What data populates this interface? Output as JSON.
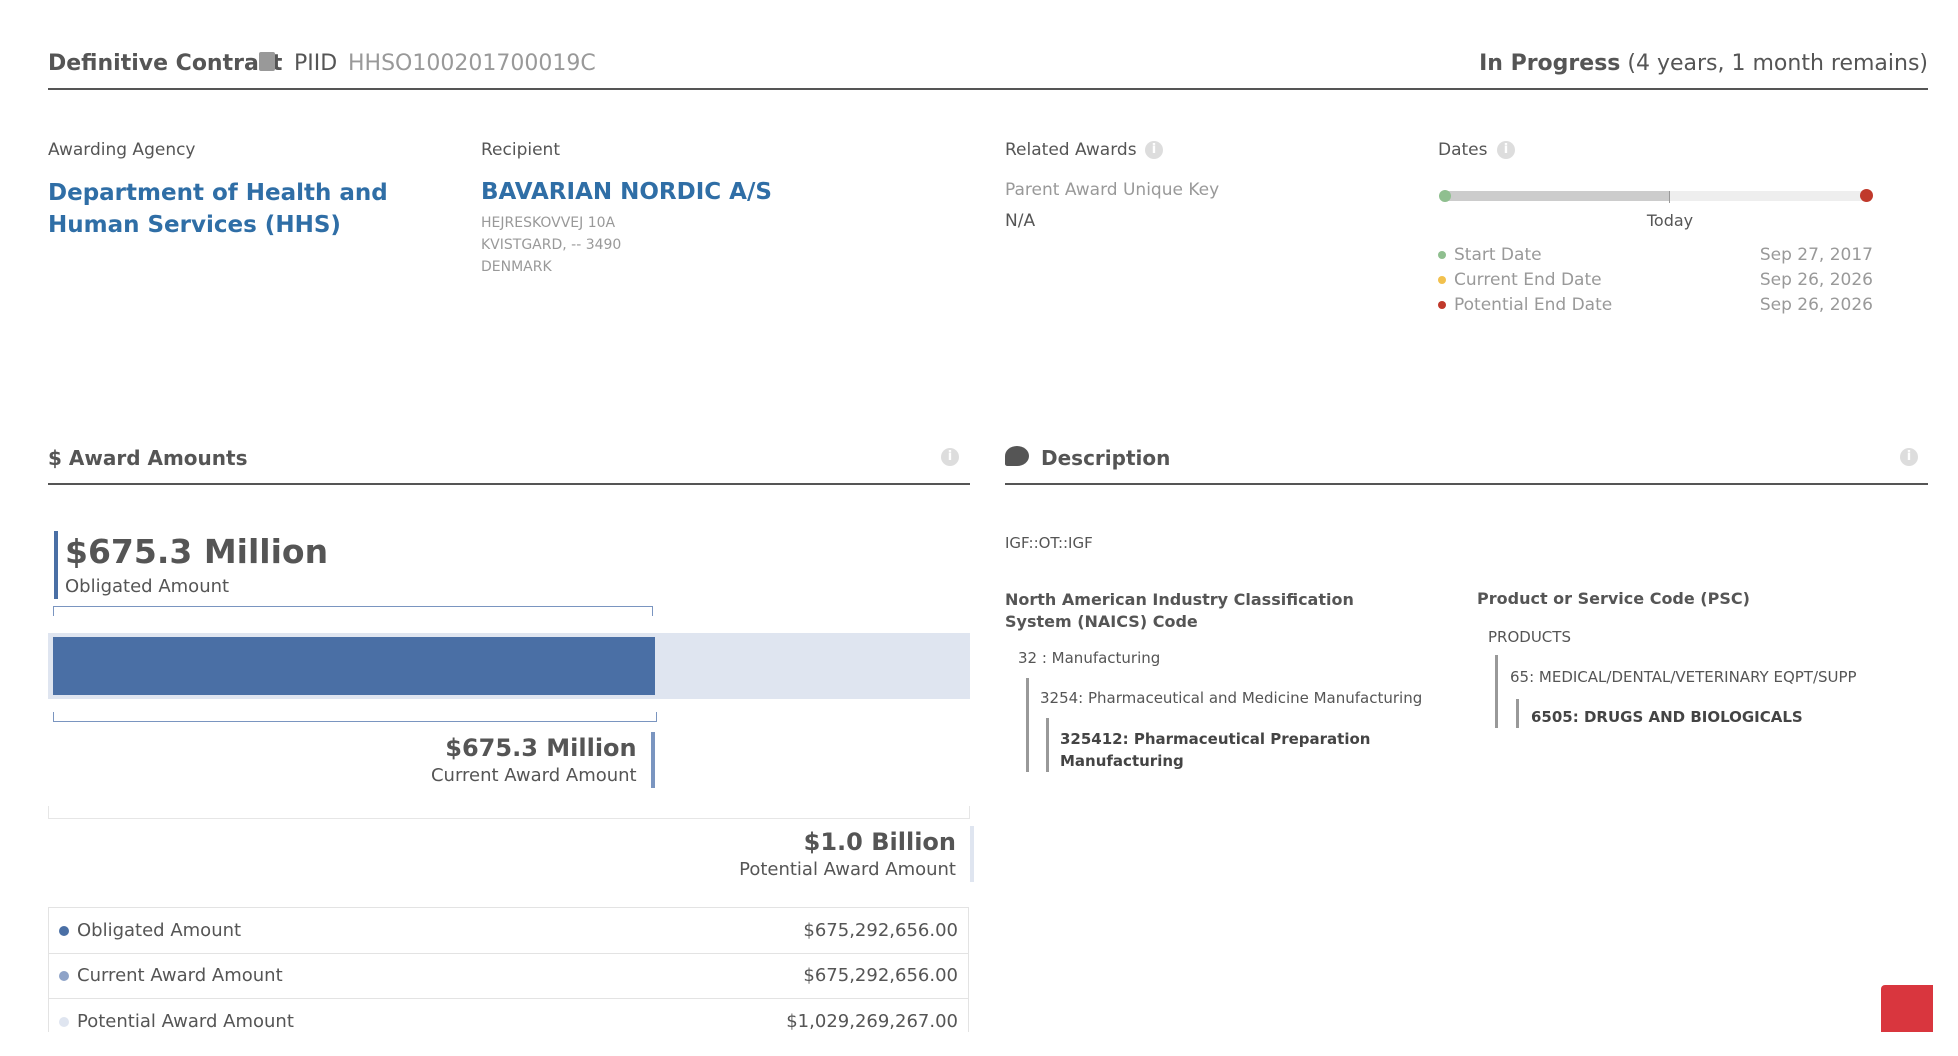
{
  "header": {
    "award_type": "Definitive Contract",
    "piid_label": "PIID",
    "piid": "HHSO100201700019C",
    "status": "In Progress",
    "status_note": "(4 years, 1 month remains)"
  },
  "overview": {
    "agency_label": "Awarding Agency",
    "agency": "Department of Health and Human Services (HHS)",
    "recipient_label": "Recipient",
    "recipient": "BAVARIAN NORDIC A/S",
    "address": [
      "HEJRESKOVVEJ 10A",
      "KVISTGARD, -- 3490",
      "DENMARK"
    ],
    "related_label": "Related Awards",
    "parent_label": "Parent Award Unique Key",
    "parent": "N/A",
    "dates_label": "Dates",
    "today": "Today",
    "dates": [
      {
        "label": "Start Date",
        "value": "Sep 27, 2017"
      },
      {
        "label": "Current End Date",
        "value": "Sep 26, 2026"
      },
      {
        "label": "Potential End Date",
        "value": "Sep 26, 2026"
      }
    ]
  },
  "amounts": {
    "title": "$ Award Amounts",
    "obligated": {
      "value": "$675.3 Million",
      "label": "Obligated Amount"
    },
    "current": {
      "value": "$675.3 Million",
      "label": "Current Award Amount"
    },
    "potential": {
      "value": "$1.0 Billion",
      "label": "Potential Award Amount"
    },
    "table": [
      {
        "label": "Obligated Amount",
        "value": "$675,292,656.00"
      },
      {
        "label": "Current Award Amount",
        "value": "$675,292,656.00"
      },
      {
        "label": "Potential Award Amount",
        "value": "$1,029,269,267.00"
      }
    ]
  },
  "description": {
    "title": "Description",
    "text": "IGF::OT::IGF",
    "naics_label": "North American Industry Classification System (NAICS) Code",
    "naics": [
      "32 : Manufacturing",
      "3254: Pharmaceutical and Medicine Manufacturing",
      "325412: Pharmaceutical Preparation Manufacturing"
    ],
    "psc_label": "Product or Service Code (PSC)",
    "psc": [
      "PRODUCTS",
      "65: MEDICAL/DENTAL/VETERINARY EQPT/SUPP",
      "6505: DRUGS AND BIOLOGICALS"
    ]
  }
}
